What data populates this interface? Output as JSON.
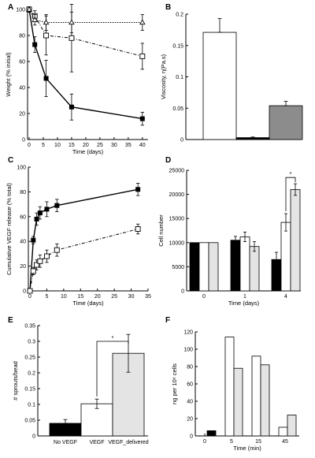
{
  "colors": {
    "black": "#000000",
    "white": "#ffffff",
    "grey": "#8c8c8c",
    "lightgrey": "#e4e4e4"
  },
  "chart_data": [
    {
      "panel": "A",
      "type": "line",
      "xlabel": "Time (days)",
      "ylabel": "Weight (% initial)",
      "xlim": [
        0,
        42
      ],
      "ylim": [
        0,
        100
      ],
      "xticks": [
        "0",
        "5",
        "10",
        "15",
        "20",
        "25",
        "30",
        "35",
        "40"
      ],
      "yticks": [
        "0",
        "20",
        "40",
        "60",
        "80",
        "100"
      ],
      "series": [
        {
          "marker": "filled-square",
          "line": "solid",
          "x": [
            0,
            2,
            6,
            15,
            40
          ],
          "y": [
            100,
            73,
            47,
            25,
            16
          ],
          "err": [
            2,
            6,
            14,
            10,
            5
          ]
        },
        {
          "marker": "open-square",
          "line": "dash-dot",
          "x": [
            0,
            2,
            6,
            15,
            40
          ],
          "y": [
            100,
            95,
            80,
            78,
            64
          ],
          "err": [
            2,
            4,
            15,
            26,
            10
          ]
        },
        {
          "marker": "open-triangle",
          "line": "dotted",
          "x": [
            0,
            2,
            6,
            15,
            40
          ],
          "y": [
            100,
            92,
            90,
            90,
            90
          ],
          "err": [
            2,
            4,
            6,
            8,
            6
          ]
        }
      ]
    },
    {
      "panel": "B",
      "type": "bar",
      "ylabel": "Viscosity, η(Pa.s)",
      "ylim": [
        0,
        0.2
      ],
      "yticks": [
        "0",
        "0.05",
        "0.1",
        "0.15",
        "0.2"
      ],
      "values": [
        0.171,
        0.003,
        0.054
      ],
      "err": [
        0.022,
        0.001,
        0.007
      ],
      "fills": [
        "white",
        "black",
        "grey"
      ]
    },
    {
      "panel": "C",
      "type": "line",
      "xlabel": "Time (days)",
      "ylabel": "Cumulative VEGF release (% total)",
      "xlim": [
        0,
        35
      ],
      "ylim": [
        0,
        100
      ],
      "xticks": [
        "0",
        "5",
        "10",
        "15",
        "20",
        "25",
        "30",
        "35"
      ],
      "yticks": [
        "0",
        "20",
        "40",
        "60",
        "80",
        "100"
      ],
      "series": [
        {
          "marker": "filled-square",
          "line": "solid",
          "x": [
            0,
            1,
            2,
            3,
            5,
            8,
            32
          ],
          "y": [
            0,
            41,
            58,
            63,
            66,
            69,
            82
          ],
          "err": [
            0,
            3,
            5,
            5,
            6,
            5,
            5
          ]
        },
        {
          "marker": "open-square",
          "line": "dash-dot",
          "x": [
            0,
            1,
            2,
            3,
            5,
            8,
            32
          ],
          "y": [
            0,
            16,
            21,
            24,
            28,
            33,
            50
          ],
          "err": [
            0,
            3,
            4,
            5,
            5,
            5,
            4
          ]
        }
      ]
    },
    {
      "panel": "D",
      "type": "bar",
      "xlabel": "Time (days)",
      "ylabel": "Cell number",
      "categories": [
        "0",
        "1",
        "4"
      ],
      "ylim": [
        0,
        25000
      ],
      "yticks": [
        "0",
        "5000",
        "10000",
        "15000",
        "20000",
        "25000"
      ],
      "series": [
        {
          "fill": "black",
          "values": [
            10000,
            10500,
            6500
          ],
          "err": [
            0,
            800,
            1500
          ]
        },
        {
          "fill": "white",
          "values": [
            10000,
            11200,
            14200
          ],
          "err": [
            0,
            1000,
            1800
          ]
        },
        {
          "fill": "lightgrey",
          "values": [
            10000,
            9200,
            21000
          ],
          "err": [
            0,
            1000,
            1200
          ]
        }
      ],
      "annotation": "*"
    },
    {
      "panel": "E",
      "type": "bar",
      "ylabel": "# sprouts/bead",
      "categories": [
        "No VEGF",
        "VEGF",
        "VEGF_delivered"
      ],
      "ylim": [
        0,
        0.35
      ],
      "yticks": [
        "0",
        "0.05",
        "0.1",
        "0.15",
        "0.2",
        "0.25",
        "0.3",
        "0.35"
      ],
      "values": [
        0.04,
        0.102,
        0.262
      ],
      "err": [
        0.012,
        0.015,
        0.06
      ],
      "fills": [
        "black",
        "white",
        "lightgrey"
      ],
      "annotation": "*"
    },
    {
      "panel": "F",
      "type": "bar",
      "xlabel": "Time (min)",
      "ylabel": "ng per 10⁶ cells",
      "categories": [
        "0",
        "5",
        "15",
        "45"
      ],
      "ylim": [
        0,
        120
      ],
      "yticks": [
        "0",
        "20",
        "40",
        "60",
        "80",
        "100",
        "120"
      ],
      "series": [
        {
          "fill": "white",
          "values": [
            0,
            114,
            92,
            10
          ]
        },
        {
          "fill": "lightgrey",
          "values": [
            0,
            78,
            82,
            24
          ]
        }
      ],
      "extra": {
        "category": "0",
        "fill": "black",
        "value": 6
      }
    }
  ]
}
